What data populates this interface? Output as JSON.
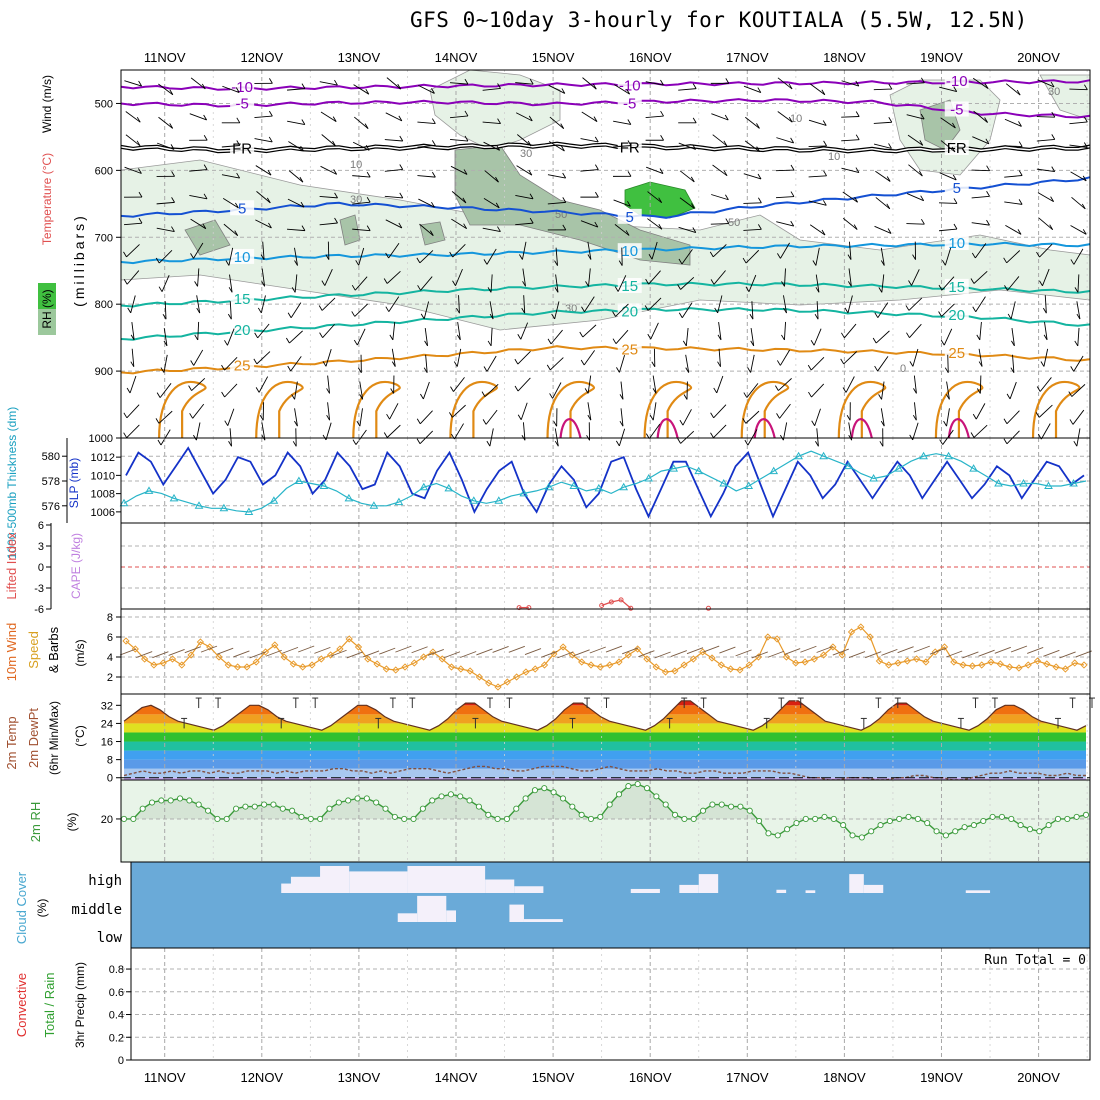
{
  "title": "GFS 0~10day 3-hourly for KOUTIALA (5.5W, 12.5N)",
  "colors": {
    "purple": "#8a00b8",
    "blue": "#1450d2",
    "lightblue": "#1496dc",
    "teal": "#14b4a0",
    "orange": "#e08a14",
    "magenta": "#c8147a",
    "slp": "#1432c8",
    "thick": "#28b4c8",
    "wind": "#e89a2a",
    "rh": "#3a9a3a",
    "cloud": "#6aaad8",
    "cloudclear": "#f4f0fa"
  },
  "chart_data": [
    {
      "type": "contour",
      "panel": "cross_section",
      "ylabel": "(millibars)",
      "left_labels": [
        "RH (%)",
        "Temperature (°C)",
        "Wind (m/s)"
      ],
      "y_ticks": [
        500,
        600,
        700,
        800,
        900,
        1000
      ],
      "ylim": [
        1000,
        450
      ],
      "x_dates": [
        "11NOV",
        "12NOV",
        "13NOV",
        "14NOV",
        "15NOV",
        "16NOV",
        "17NOV",
        "18NOV",
        "19NOV",
        "20NOV"
      ],
      "temperature_levels": [
        {
          "label": "-10",
          "p": [
            475,
            478,
            476,
            474,
            472,
            471,
            470,
            469,
            468,
            467
          ],
          "color": "purple"
        },
        {
          "label": "-5",
          "p": [
            500,
            503,
            499,
            498,
            501,
            497,
            495,
            498,
            515,
            520
          ],
          "color": "purple"
        },
        {
          "label": "FR",
          "p": [
            565,
            570,
            567,
            565,
            562,
            565,
            568,
            570,
            568,
            566
          ],
          "color": "black"
        },
        {
          "label": "5",
          "p": [
            668,
            660,
            650,
            655,
            662,
            670,
            652,
            638,
            625,
            612
          ],
          "color": "blue"
        },
        {
          "label": "10",
          "p": [
            737,
            732,
            728,
            726,
            722,
            718,
            714,
            712,
            710,
            712
          ],
          "color": "lightblue"
        },
        {
          "label": "15",
          "p": [
            802,
            795,
            787,
            780,
            774,
            770,
            770,
            773,
            777,
            782
          ],
          "color": "teal"
        },
        {
          "label": "20",
          "p": [
            852,
            842,
            832,
            822,
            812,
            808,
            808,
            813,
            820,
            832
          ],
          "color": "teal"
        },
        {
          "label": "25",
          "p": [
            902,
            895,
            886,
            876,
            865,
            866,
            868,
            871,
            876,
            884
          ],
          "color": "orange"
        }
      ],
      "rh_contour_labels": [
        "30",
        "50",
        "10"
      ]
    },
    {
      "type": "line",
      "panel": "slp_thickness",
      "ylabel_left": "1000-500mb Thickness (dm)",
      "ylabel_right": "SLP (mb)",
      "left_ticks": [
        576,
        578,
        580
      ],
      "right_ticks": [
        1006,
        1008,
        1010,
        1012
      ],
      "series": [
        {
          "name": "SLP (mb)",
          "values": [
            1010.0,
            1012.5,
            1011.5,
            1009.0,
            1011.0,
            1013.0,
            1010.5,
            1008.0,
            1009.5,
            1012.0,
            1011.5,
            1009.0,
            1010.0,
            1012.5,
            1011.0,
            1008.0,
            1009.5,
            1012.5,
            1011.0,
            1008.5,
            1009.0,
            1012.5,
            1011.0,
            1008.0,
            1007.5,
            1010.5,
            1012.5,
            1009.5,
            1006.0,
            1008.5,
            1010.5,
            1011.5,
            1008.0,
            1006.0,
            1009.0,
            1011.0,
            1009.5,
            1006.5,
            1008.0,
            1011.5,
            1012.0,
            1008.5,
            1005.5,
            1008.5,
            1011.5,
            1011.5,
            1008.5,
            1005.5,
            1008.0,
            1011.0,
            1012.5,
            1009.0,
            1005.5,
            1008.5,
            1011.5,
            1010.0,
            1007.5,
            1009.0,
            1011.5,
            1009.5,
            1007.5,
            1009.5,
            1011.5,
            1010.0,
            1007.5,
            1009.5,
            1011.5,
            1009.5,
            1007.5,
            1009.0,
            1011.0,
            1010.0,
            1007.5,
            1009.5,
            1011.5,
            1011.0,
            1009.0,
            1010.0
          ],
          "color": "slp"
        },
        {
          "name": "Thickness (dm)",
          "values": [
            576.2,
            576.8,
            577.2,
            577.0,
            576.6,
            576.3,
            576.0,
            575.8,
            575.8,
            575.6,
            575.5,
            575.8,
            576.4,
            577.4,
            578.0,
            577.8,
            577.6,
            577.2,
            576.6,
            576.2,
            576.0,
            576.0,
            576.3,
            576.8,
            577.5,
            577.8,
            577.4,
            576.8,
            576.4,
            576.2,
            576.4,
            576.8,
            577.0,
            577.2,
            577.5,
            577.9,
            577.6,
            577.2,
            577.4,
            577.0,
            577.5,
            577.8,
            578.2,
            578.8,
            579.0,
            579.2,
            578.8,
            578.3,
            577.8,
            577.2,
            577.6,
            578.2,
            578.8,
            579.4,
            580.0,
            580.4,
            580.0,
            579.6,
            579.2,
            578.6,
            578.2,
            578.4,
            579.0,
            579.6,
            580.0,
            580.2,
            580.0,
            579.6,
            579.0,
            578.4,
            577.8,
            577.6,
            577.8,
            577.8,
            577.6,
            577.6,
            577.8,
            578.0
          ],
          "color": "thick"
        }
      ]
    },
    {
      "type": "line",
      "panel": "lifted_cape",
      "ylabel_left": "Lifted Index",
      "ylabel_right": "CAPE (J/kg)",
      "y_ticks": [
        -6,
        -3,
        0,
        3,
        6
      ],
      "ylim": [
        -6,
        6
      ],
      "zero_line_color": "#e05050",
      "series": [
        {
          "name": "Lifted Index",
          "segments": [
            [
              [
                14.65,
                5.8
              ],
              [
                14.75,
                5.8
              ]
            ],
            [
              [
                15.5,
                5.5
              ],
              [
                15.6,
                5.0
              ],
              [
                15.7,
                4.7
              ],
              [
                15.8,
                5.9
              ]
            ],
            [
              [
                16.6,
                5.9
              ]
            ]
          ]
        }
      ]
    },
    {
      "type": "line",
      "panel": "wind10m",
      "ylabel_left": "10m Wind Speed & Barbs",
      "ylabel_right": "(m/s)",
      "y_ticks": [
        2,
        4,
        6,
        8
      ],
      "ylim": [
        0.5,
        8.7
      ],
      "series": [
        {
          "name": "10m Wind Speed",
          "values": [
            5.6,
            4.8,
            3.8,
            3.2,
            3.4,
            3.8,
            3.2,
            4.2,
            5.5,
            5.0,
            4.0,
            3.2,
            3.0,
            3.0,
            3.5,
            4.5,
            5.2,
            4.0,
            3.3,
            3.0,
            3.2,
            3.8,
            4.2,
            4.8,
            5.8,
            5.0,
            3.8,
            3.3,
            2.8,
            2.7,
            3.0,
            3.4,
            4.0,
            4.5,
            3.8,
            3.0,
            2.8,
            2.6,
            2.0,
            1.4,
            1.0,
            1.5,
            2.0,
            2.5,
            2.8,
            3.2,
            4.3,
            5.0,
            4.2,
            3.5,
            3.2,
            3.0,
            3.2,
            3.5,
            4.2,
            4.8,
            3.8,
            3.0,
            2.5,
            2.6,
            3.2,
            3.8,
            4.5,
            3.9,
            3.2,
            2.8,
            2.7,
            3.2,
            4.0,
            6.0,
            5.8,
            4.0,
            3.4,
            3.5,
            3.8,
            4.2,
            5.0,
            4.2,
            6.5,
            7.0,
            6.0,
            3.6,
            3.2,
            3.4,
            3.6,
            3.8,
            3.5,
            4.5,
            5.0,
            3.5,
            3.2,
            3.1,
            3.2,
            3.5,
            3.3,
            3.0,
            2.9,
            3.2,
            3.6,
            3.3,
            3.0,
            2.8,
            3.4,
            3.2
          ]
        }
      ]
    },
    {
      "type": "area",
      "panel": "temp2m",
      "ylabel_left": "2m Temp 2m DewPt (6hr Min/Max)",
      "ylabel_right": "(°C)",
      "y_ticks": [
        0,
        8,
        16,
        24,
        32
      ],
      "ylim": [
        -1,
        37
      ],
      "series": [
        {
          "name": "2m Temp",
          "values": [
            25,
            28,
            31,
            32,
            30,
            27,
            25,
            24,
            23,
            22,
            21,
            23,
            26,
            29,
            32,
            32,
            30,
            27,
            25,
            24,
            23,
            22,
            21,
            23,
            26,
            29,
            32,
            32,
            30,
            27,
            25,
            24,
            23,
            22,
            21,
            23,
            26,
            30,
            33,
            33,
            30,
            27,
            25,
            24,
            23,
            22,
            21,
            23,
            26,
            30,
            33,
            33,
            30,
            27,
            25,
            24,
            23,
            22,
            21,
            23,
            26,
            30,
            34,
            34,
            31,
            28,
            25,
            24,
            23,
            22,
            21,
            23,
            26,
            30,
            34,
            34,
            31,
            28,
            25,
            24,
            23,
            22,
            21,
            23,
            26,
            30,
            33,
            33,
            30,
            27,
            25,
            24,
            23,
            22,
            21,
            23,
            26,
            30,
            32,
            32,
            30,
            27,
            25,
            24,
            23,
            22,
            21,
            23
          ]
        },
        {
          "name": "2m DewPt",
          "values": [
            1,
            2,
            3,
            2,
            2,
            3,
            2,
            3,
            3,
            2,
            3,
            2,
            2,
            3,
            3,
            3,
            2,
            3,
            2,
            3,
            3,
            3,
            4,
            4,
            3,
            3,
            2,
            3,
            2,
            3,
            4,
            4,
            4,
            3,
            2,
            3,
            4,
            5,
            5,
            4,
            4,
            3,
            3,
            4,
            5,
            5,
            5,
            4,
            3,
            3,
            4,
            5,
            4,
            3,
            3,
            3,
            4,
            3,
            3,
            2,
            2,
            3,
            3,
            2,
            2,
            2,
            3,
            3,
            3,
            2,
            2,
            1,
            0,
            0,
            -1,
            -1,
            0,
            0,
            0,
            -1,
            -1,
            0,
            0,
            1,
            1,
            0,
            0,
            -1,
            -1,
            0,
            1,
            2,
            2,
            3,
            2,
            2,
            2,
            1,
            1,
            2,
            1,
            1
          ]
        }
      ]
    },
    {
      "type": "area",
      "panel": "rh2m",
      "ylabel_left": "2m RH",
      "ylabel_right": "(%)",
      "y_ticks": [
        20
      ],
      "ylim": [
        0,
        38
      ],
      "series": [
        {
          "name": "2m RH",
          "values": [
            20,
            20,
            25,
            28,
            29,
            29,
            30,
            29,
            27,
            24,
            20,
            20,
            25,
            26,
            26,
            27,
            27,
            25,
            24,
            21,
            20,
            20,
            25,
            28,
            29,
            30,
            30,
            28,
            25,
            21,
            20,
            20,
            25,
            29,
            31,
            32,
            31,
            29,
            26,
            22,
            20,
            20,
            25,
            30,
            34,
            35,
            33,
            30,
            26,
            22,
            20,
            21,
            27,
            32,
            36,
            37,
            35,
            31,
            27,
            22,
            20,
            20,
            24,
            27,
            27,
            26,
            26,
            24,
            19,
            13,
            12,
            15,
            18,
            20,
            20,
            21,
            20,
            17,
            12,
            11,
            14,
            17,
            19,
            20,
            21,
            20,
            18,
            14,
            12,
            14,
            16,
            17,
            19,
            21,
            21,
            20,
            17,
            15,
            14,
            17,
            20,
            20,
            21,
            22
          ]
        }
      ]
    },
    {
      "type": "heatmap",
      "panel": "cloud",
      "ylabel_left": "Cloud Cover",
      "ylabel_right": "(%)",
      "levels": [
        "high",
        "middle",
        "low"
      ],
      "clear_spans": [
        {
          "level": "high",
          "from": 12.2,
          "to": 12.6,
          "depth": 0.35
        },
        {
          "level": "high",
          "from": 12.3,
          "to": 12.8,
          "depth": 0.6
        },
        {
          "level": "high",
          "from": 12.6,
          "to": 12.9,
          "depth": 1.0
        },
        {
          "level": "high",
          "from": 12.9,
          "to": 13.5,
          "depth": 0.8
        },
        {
          "level": "high",
          "from": 13.5,
          "to": 14.3,
          "depth": 1.0
        },
        {
          "level": "high",
          "from": 14.3,
          "to": 14.6,
          "depth": 0.5
        },
        {
          "level": "high",
          "from": 14.6,
          "to": 14.9,
          "depth": 0.25
        },
        {
          "level": "high",
          "from": 15.8,
          "to": 16.1,
          "depth": 0.15
        },
        {
          "level": "high",
          "from": 16.3,
          "to": 16.5,
          "depth": 0.3
        },
        {
          "level": "high",
          "from": 16.5,
          "to": 16.7,
          "depth": 0.7
        },
        {
          "level": "high",
          "from": 17.3,
          "to": 17.4,
          "depth": 0.12
        },
        {
          "level": "high",
          "from": 17.6,
          "to": 17.7,
          "depth": 0.1
        },
        {
          "level": "high",
          "from": 18.05,
          "to": 18.2,
          "depth": 0.7
        },
        {
          "level": "high",
          "from": 18.2,
          "to": 18.4,
          "depth": 0.3
        },
        {
          "level": "high",
          "from": 19.25,
          "to": 19.5,
          "depth": 0.1
        },
        {
          "level": "middle",
          "from": 13.4,
          "to": 13.6,
          "depth": 0.3
        },
        {
          "level": "middle",
          "from": 13.6,
          "to": 13.9,
          "depth": 0.9
        },
        {
          "level": "middle",
          "from": 13.9,
          "to": 14.0,
          "depth": 0.4
        },
        {
          "level": "middle",
          "from": 14.55,
          "to": 14.7,
          "depth": 0.6
        },
        {
          "level": "middle",
          "from": 14.7,
          "to": 15.1,
          "depth": 0.1
        }
      ]
    },
    {
      "type": "bar",
      "panel": "precip",
      "ylabel_left_a": "Total / Rain",
      "ylabel_left_b": "Convective",
      "ylabel_right": "3hr Precip (mm)",
      "y_ticks": [
        0,
        0.2,
        0.4,
        0.6,
        0.8
      ],
      "ylim": [
        0,
        0.95
      ],
      "run_total": "Run Total = 0",
      "values": []
    }
  ],
  "labels": {
    "millibars": "(millibars)",
    "rh": "RH (%)",
    "temperature": "Temperature (°C)",
    "wind": "Wind (m/s)",
    "thickness": "1000-500mb Thickness (dm)",
    "slp": "SLP (mb)",
    "lifted": "Lifted Index",
    "cape": "CAPE (J/kg)",
    "wind10_a": "10m Wind",
    "wind10_b": "Speed",
    "wind10_c": "& Barbs",
    "ms": "(m/s)",
    "temp_a": "2m Temp",
    "temp_b": "2m DewPt",
    "temp_c": "(6hr Min/Max)",
    "degc": "(°C)",
    "rh2": "2m RH",
    "pct": "(%)",
    "cloud": "Cloud Cover",
    "pct2": "(%)",
    "high": "high",
    "middle": "middle",
    "low": "low",
    "precip_a": "Total / Rain",
    "precip_b": "Convective",
    "precip_c": "3hr Precip (mm)",
    "run_total": "Run Total = 0"
  }
}
